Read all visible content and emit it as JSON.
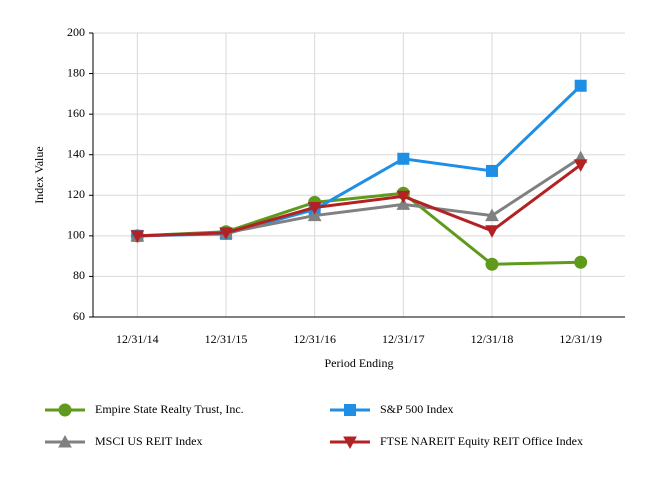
{
  "chart_data": {
    "type": "line",
    "x_label": "Period Ending",
    "y_label": "Index Value",
    "categories": [
      "12/31/14",
      "12/31/15",
      "12/31/16",
      "12/31/17",
      "12/31/18",
      "12/31/19"
    ],
    "series": [
      {
        "name": "Empire State Realty Trust, Inc.",
        "color": "#5f9a1c",
        "marker": "circle",
        "values": [
          100,
          102,
          116.5,
          121,
          86,
          87
        ]
      },
      {
        "name": "S&P 500 Index",
        "color": "#1f8fe6",
        "marker": "square",
        "values": [
          100,
          101,
          113,
          138,
          132,
          174
        ]
      },
      {
        "name": "MSCI US REIT Index",
        "color": "#808080",
        "marker": "triangle-up",
        "values": [
          100,
          101.5,
          110,
          115.5,
          110,
          138.5
        ]
      },
      {
        "name": "FTSE NAREIT Equity REIT Office Index",
        "color": "#b22222",
        "marker": "triangle-down",
        "values": [
          100,
          101.5,
          114,
          119.5,
          102.5,
          135
        ]
      }
    ],
    "ylim": [
      60,
      200
    ],
    "yticks": [
      60,
      80,
      100,
      120,
      140,
      160,
      180,
      200
    ],
    "grid": true
  }
}
